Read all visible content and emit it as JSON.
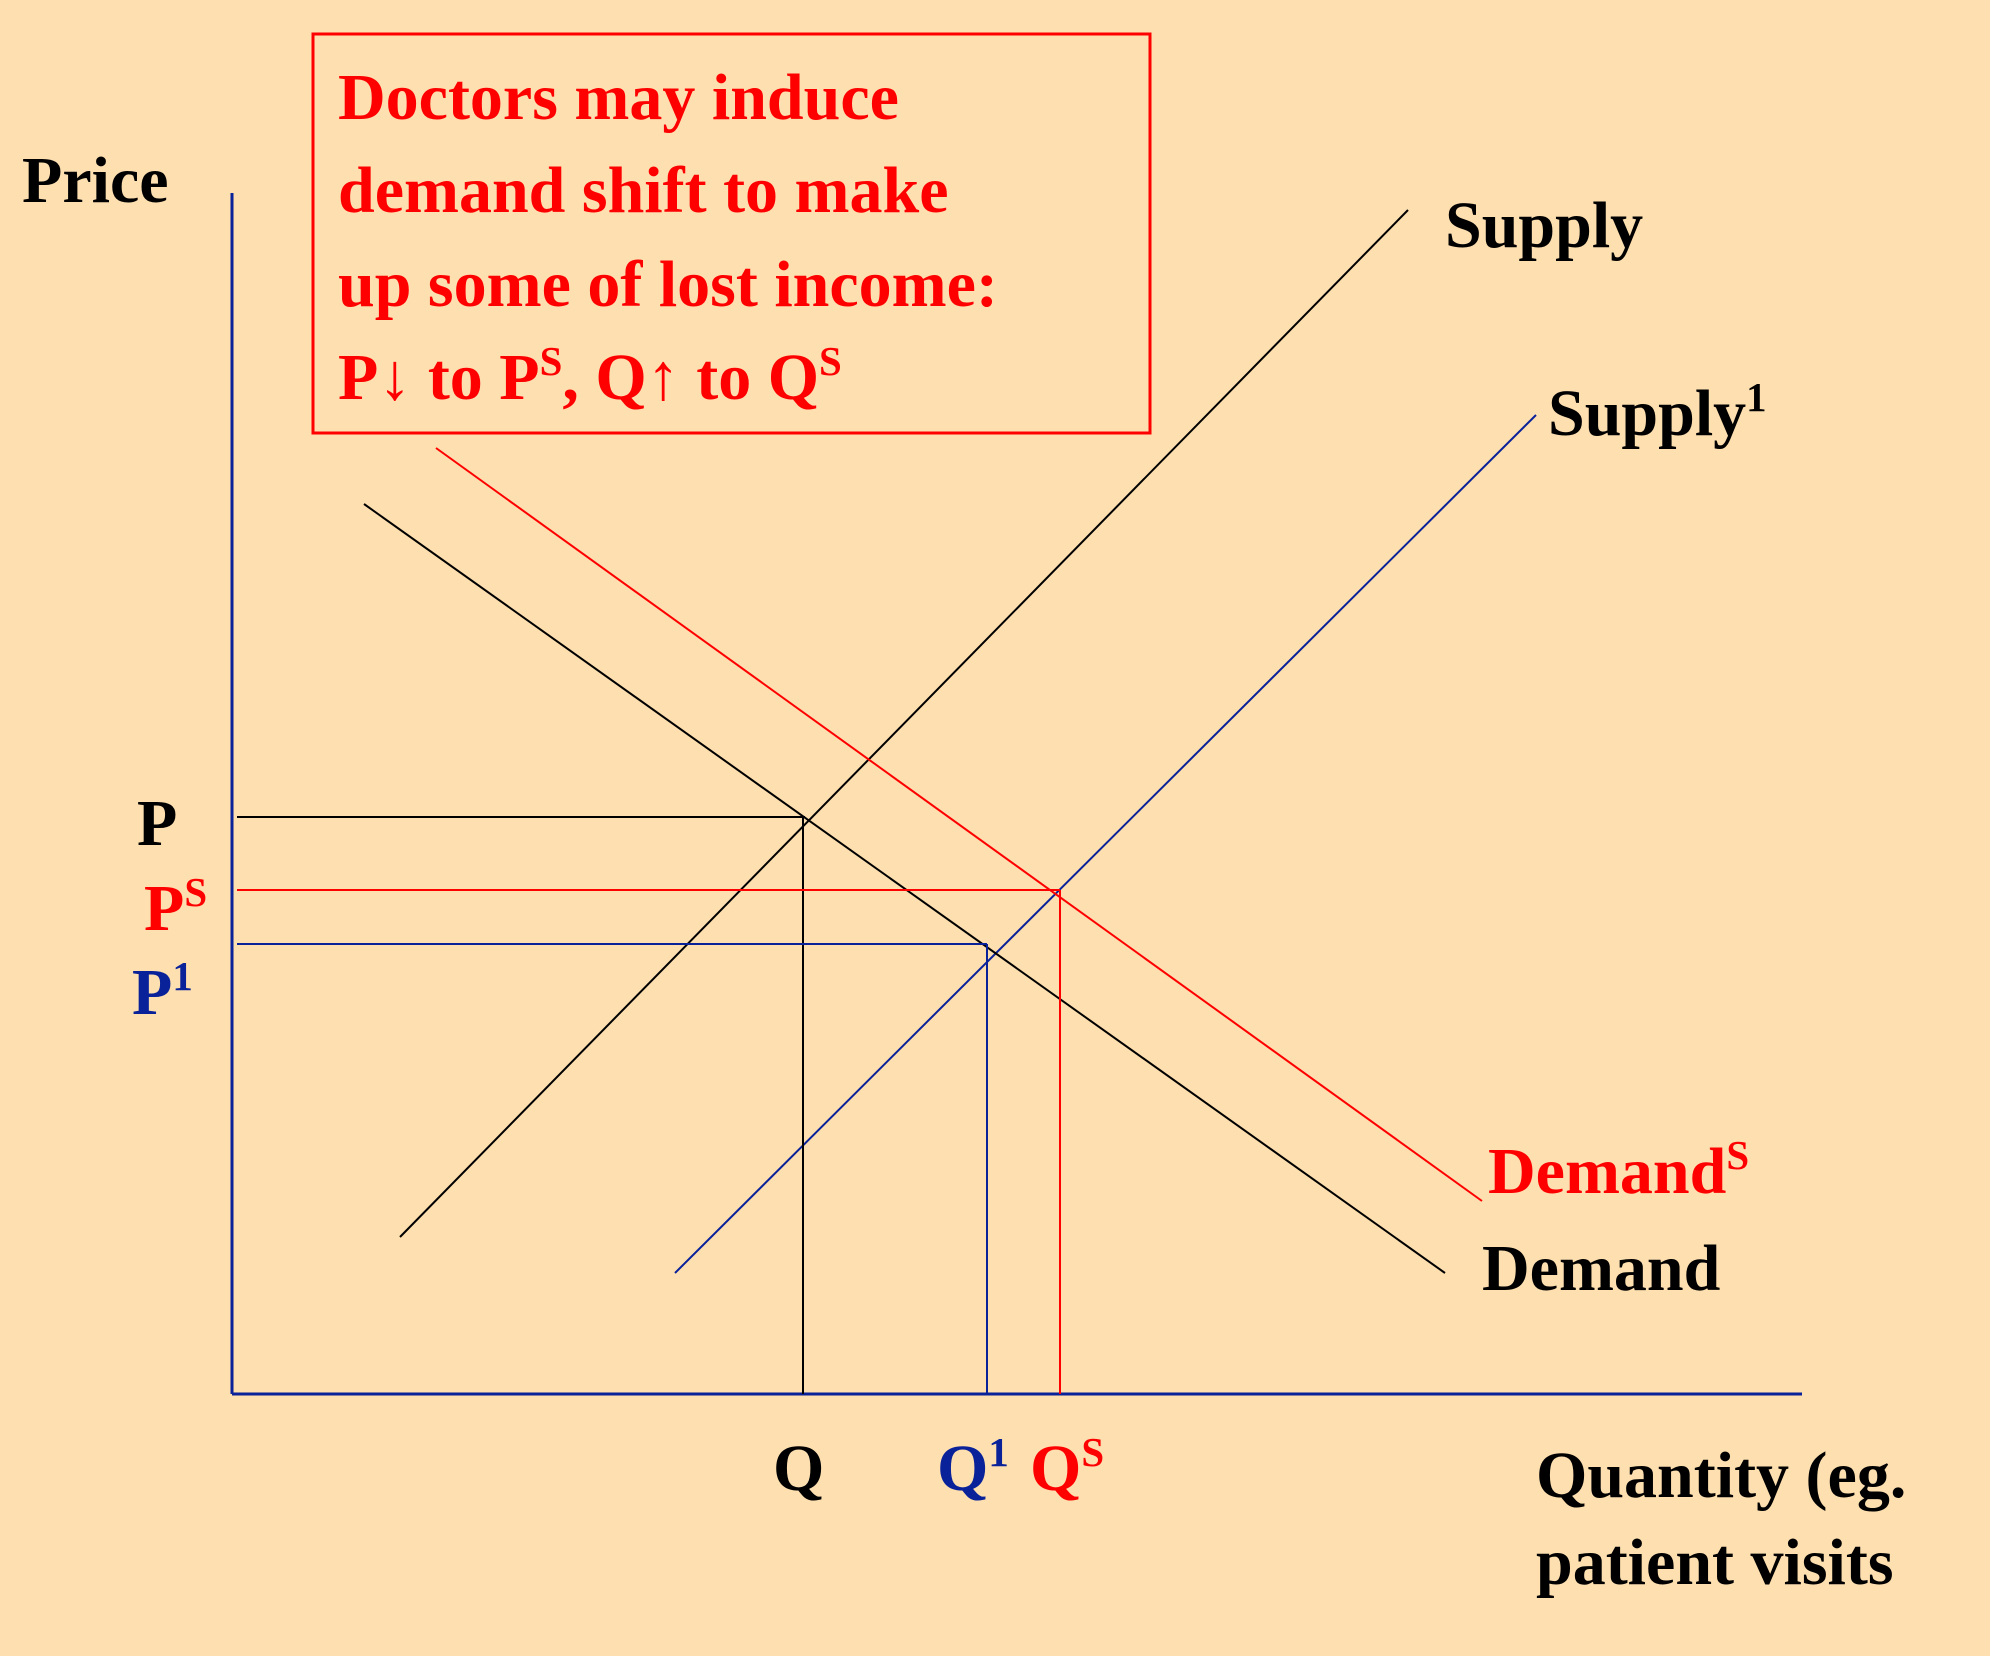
{
  "colors": {
    "background": "#FDDFB0",
    "black": "#000000",
    "red": "#FF0000",
    "blue": "#0A2299"
  },
  "callout": {
    "lines": [
      "Doctors may induce",
      "demand shift to make",
      "up some of lost income:"
    ],
    "line4": {
      "a": "P↓ to P",
      "a_sup": "S",
      "b": ", Q↑ to Q",
      "b_sup": "S"
    }
  },
  "axes": {
    "y_label": "Price",
    "x_label_line1": "Quantity (eg.",
    "x_label_line2": "patient visits"
  },
  "curves": {
    "supply": {
      "label": "Supply"
    },
    "supply1": {
      "label": "Supply",
      "sup": "1"
    },
    "demand": {
      "label": "Demand"
    },
    "demand_s": {
      "label": "Demand",
      "sup": "S"
    }
  },
  "price_levels": {
    "p": {
      "label": "P"
    },
    "p_s": {
      "label": "P",
      "sup": "S"
    },
    "p1": {
      "label": "P",
      "sup": "1"
    }
  },
  "quantity_levels": {
    "q": {
      "label": "Q"
    },
    "q1": {
      "label": "Q",
      "sup": "1"
    },
    "q_s": {
      "label": "Q",
      "sup": "S"
    }
  }
}
